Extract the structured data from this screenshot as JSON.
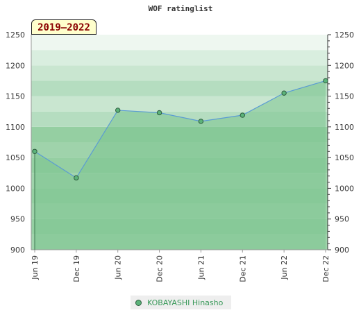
{
  "chart_data": {
    "type": "area",
    "title": "WOF ratinglist",
    "period_label": "2019–2022",
    "x": [
      "Jun 19",
      "Dec 19",
      "Jun 20",
      "Dec 20",
      "Jun 21",
      "Dec 21",
      "Jun 22",
      "Dec 22"
    ],
    "series": [
      {
        "name": "KOBAYASHI Hinasho",
        "values": [
          1060,
          1017,
          1127,
          1123,
          1109,
          1119,
          1155,
          1175
        ]
      }
    ],
    "ylim": [
      900,
      1250
    ],
    "yticks": [
      900,
      950,
      1000,
      1050,
      1100,
      1150,
      1200,
      1250
    ],
    "grid": true,
    "dual_y_axis": true,
    "legend_position": "bottom-center",
    "colors": {
      "area": "#7cc48f",
      "line": "#5a9bd4",
      "marker": "#5cb37a",
      "legend_text": "#3a9a5a"
    }
  }
}
